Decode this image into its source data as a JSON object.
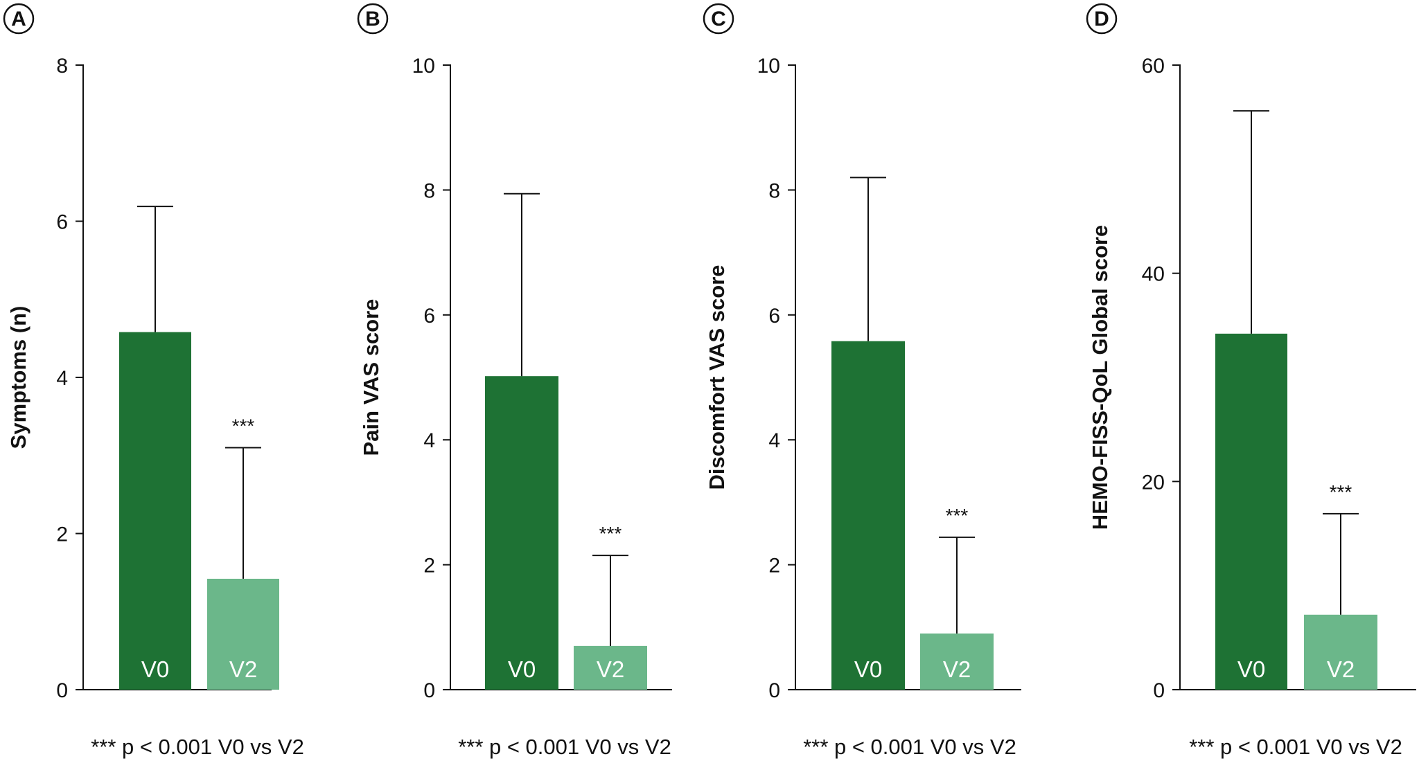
{
  "colors": {
    "v0": "#1e7234",
    "v2": "#6bb78a",
    "axis": "#111111"
  },
  "chart_data": [
    {
      "type": "bar",
      "panel": "A",
      "categories": [
        "V0",
        "V2"
      ],
      "values": [
        4.58,
        1.42
      ],
      "error_upper": [
        6.19,
        3.1
      ],
      "significance": [
        "",
        "***"
      ],
      "ylabel": "Symptoms (n)",
      "ylim": [
        0,
        8
      ],
      "yticks": [
        "0",
        "2",
        "4",
        "6",
        "8"
      ],
      "footnote": "*** p < 0.001 V0 vs V2"
    },
    {
      "type": "bar",
      "panel": "B",
      "categories": [
        "V0",
        "V2"
      ],
      "values": [
        5.02,
        0.7
      ],
      "error_upper": [
        7.94,
        2.15
      ],
      "significance": [
        "",
        "***"
      ],
      "ylabel": "Pain VAS score",
      "ylim": [
        0,
        10
      ],
      "yticks": [
        "0",
        "2",
        "4",
        "6",
        "8",
        "10"
      ],
      "footnote": "*** p < 0.001 V0 vs V2"
    },
    {
      "type": "bar",
      "panel": "C",
      "categories": [
        "V0",
        "V2"
      ],
      "values": [
        5.58,
        0.9
      ],
      "error_upper": [
        8.2,
        2.44
      ],
      "significance": [
        "",
        "***"
      ],
      "ylabel": "Discomfort VAS score",
      "ylim": [
        0,
        10
      ],
      "yticks": [
        "0",
        "2",
        "4",
        "6",
        "8",
        "10"
      ],
      "footnote": "*** p < 0.001 V0 vs V2"
    },
    {
      "type": "bar",
      "panel": "D",
      "categories": [
        "V0",
        "V2"
      ],
      "values": [
        34.2,
        7.2
      ],
      "error_upper": [
        55.6,
        16.9
      ],
      "significance": [
        "",
        "***"
      ],
      "ylabel": "HEMO-FISS-QoL Global score",
      "ylim": [
        0,
        60
      ],
      "yticks": [
        "0",
        "20",
        "40",
        "60"
      ],
      "footnote": "*** p < 0.001 V0 vs V2"
    }
  ]
}
